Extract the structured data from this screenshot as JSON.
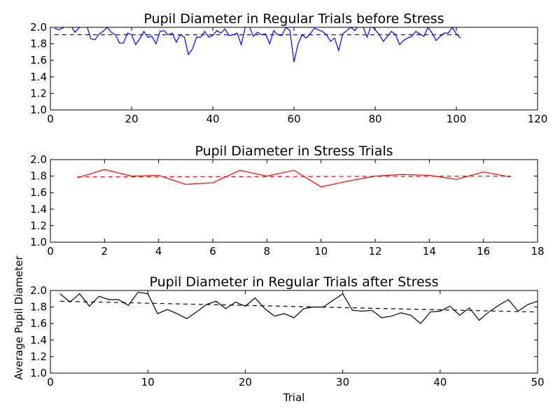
{
  "chart_data": [
    {
      "type": "line",
      "title": "Pupil Diameter in Regular Trials before Stress",
      "xlabel": "",
      "ylabel": "",
      "xlim": [
        0,
        120
      ],
      "ylim": [
        1.0,
        2.0
      ],
      "xticks": [
        "0",
        "20",
        "40",
        "60",
        "80",
        "100",
        "120"
      ],
      "yticks": [
        "1.0",
        "1.2",
        "1.4",
        "1.6",
        "1.8",
        "2.0"
      ],
      "color": "#0000ff",
      "mean_line": {
        "x": [
          1,
          101
        ],
        "y": [
          1.91,
          1.91
        ],
        "style": "dashed"
      },
      "series": [
        {
          "x": [
            1,
            2,
            3,
            4,
            5,
            6,
            7,
            8,
            9,
            10,
            11,
            12,
            13,
            14,
            15,
            16,
            17,
            18,
            19,
            20,
            21,
            22,
            23,
            24,
            25,
            26,
            27,
            28,
            29,
            30,
            31,
            32,
            33,
            34,
            35,
            36,
            37,
            38,
            39,
            40,
            41,
            42,
            43,
            44,
            45,
            46,
            47,
            48,
            49,
            50,
            51,
            52,
            53,
            54,
            55,
            56,
            57,
            58,
            59,
            60,
            61,
            62,
            63,
            64,
            65,
            66,
            67,
            68,
            69,
            70,
            71,
            72,
            73,
            74,
            75,
            76,
            77,
            78,
            79,
            80,
            81,
            82,
            83,
            84,
            85,
            86,
            87,
            88,
            89,
            90,
            91,
            92,
            93,
            94,
            95,
            96,
            97,
            98,
            99,
            100,
            101
          ],
          "values": [
            1.99,
            1.97,
            1.99,
            2.02,
            2.03,
            1.94,
            1.99,
            2.03,
            2.01,
            1.86,
            1.85,
            1.92,
            1.95,
            2.0,
            1.94,
            1.91,
            1.81,
            1.81,
            1.93,
            1.91,
            1.79,
            1.86,
            1.95,
            1.88,
            1.89,
            1.8,
            1.95,
            1.96,
            1.91,
            1.93,
            1.82,
            1.91,
            1.88,
            1.67,
            1.74,
            1.88,
            1.88,
            1.95,
            1.88,
            1.9,
            1.96,
            1.93,
            1.98,
            1.9,
            1.91,
            1.93,
            1.79,
            2.0,
            2.01,
            1.89,
            1.94,
            1.91,
            1.92,
            1.8,
            1.96,
            1.91,
            1.9,
            2.0,
            1.96,
            1.58,
            1.8,
            1.91,
            1.87,
            1.92,
            1.99,
            1.97,
            1.95,
            1.91,
            1.83,
            1.87,
            1.72,
            1.92,
            1.96,
            2.0,
            1.96,
            2.03,
            2.01,
            1.88,
            2.02,
            1.97,
            1.91,
            1.83,
            1.89,
            1.95,
            1.91,
            1.79,
            1.84,
            1.87,
            1.89,
            1.95,
            1.92,
            1.89,
            2.0,
            1.93,
            1.84,
            1.89,
            1.93,
            1.93,
            2.0,
            1.92,
            1.87
          ]
        }
      ]
    },
    {
      "type": "line",
      "title": "Pupil Diameter in Stress Trials",
      "xlabel": "",
      "ylabel": "",
      "xlim": [
        0,
        18
      ],
      "ylim": [
        1.0,
        2.0
      ],
      "xticks": [
        "0",
        "2",
        "4",
        "6",
        "8",
        "10",
        "12",
        "14",
        "16",
        "18"
      ],
      "yticks": [
        "1.0",
        "1.2",
        "1.4",
        "1.6",
        "1.8",
        "2.0"
      ],
      "color": "#ff0000",
      "mean_line": {
        "x": [
          1,
          17
        ],
        "y": [
          1.79,
          1.8
        ],
        "style": "dashed"
      },
      "series": [
        {
          "x": [
            1,
            2,
            3,
            4,
            5,
            6,
            7,
            8,
            9,
            10,
            11,
            12,
            13,
            14,
            15,
            16,
            17
          ],
          "values": [
            1.78,
            1.88,
            1.8,
            1.81,
            1.7,
            1.72,
            1.87,
            1.8,
            1.87,
            1.67,
            1.74,
            1.8,
            1.82,
            1.81,
            1.76,
            1.85,
            1.79
          ]
        }
      ]
    },
    {
      "type": "line",
      "title": "Pupil Diameter in Regular Trials after Stress",
      "xlabel": "Trial",
      "ylabel": "Average Pupil Diameter",
      "xlim": [
        0,
        50
      ],
      "ylim": [
        1.0,
        2.0
      ],
      "xticks": [
        "0",
        "10",
        "20",
        "30",
        "40",
        "50"
      ],
      "yticks": [
        "1.0",
        "1.2",
        "1.4",
        "1.6",
        "1.8",
        "2.0"
      ],
      "color": "#000000",
      "mean_line": {
        "x": [
          1,
          50
        ],
        "y": [
          1.87,
          1.74
        ],
        "style": "dashed"
      },
      "series": [
        {
          "x": [
            1,
            2,
            3,
            4,
            5,
            6,
            7,
            8,
            9,
            10,
            11,
            12,
            13,
            14,
            15,
            16,
            17,
            18,
            19,
            20,
            21,
            22,
            23,
            24,
            25,
            26,
            27,
            28,
            29,
            30,
            31,
            32,
            33,
            34,
            35,
            36,
            37,
            38,
            39,
            40,
            41,
            42,
            43,
            44,
            45,
            46,
            47,
            48,
            49,
            50
          ],
          "values": [
            1.96,
            1.86,
            1.96,
            1.81,
            1.93,
            1.89,
            1.89,
            1.82,
            1.98,
            1.96,
            1.72,
            1.77,
            1.72,
            1.66,
            1.74,
            1.83,
            1.87,
            1.78,
            1.86,
            1.81,
            1.91,
            1.78,
            1.69,
            1.72,
            1.67,
            1.78,
            1.8,
            1.8,
            1.88,
            1.96,
            1.76,
            1.75,
            1.76,
            1.67,
            1.69,
            1.73,
            1.7,
            1.6,
            1.74,
            1.75,
            1.81,
            1.7,
            1.79,
            1.64,
            1.74,
            1.82,
            1.89,
            1.75,
            1.83,
            1.87
          ]
        }
      ]
    }
  ]
}
